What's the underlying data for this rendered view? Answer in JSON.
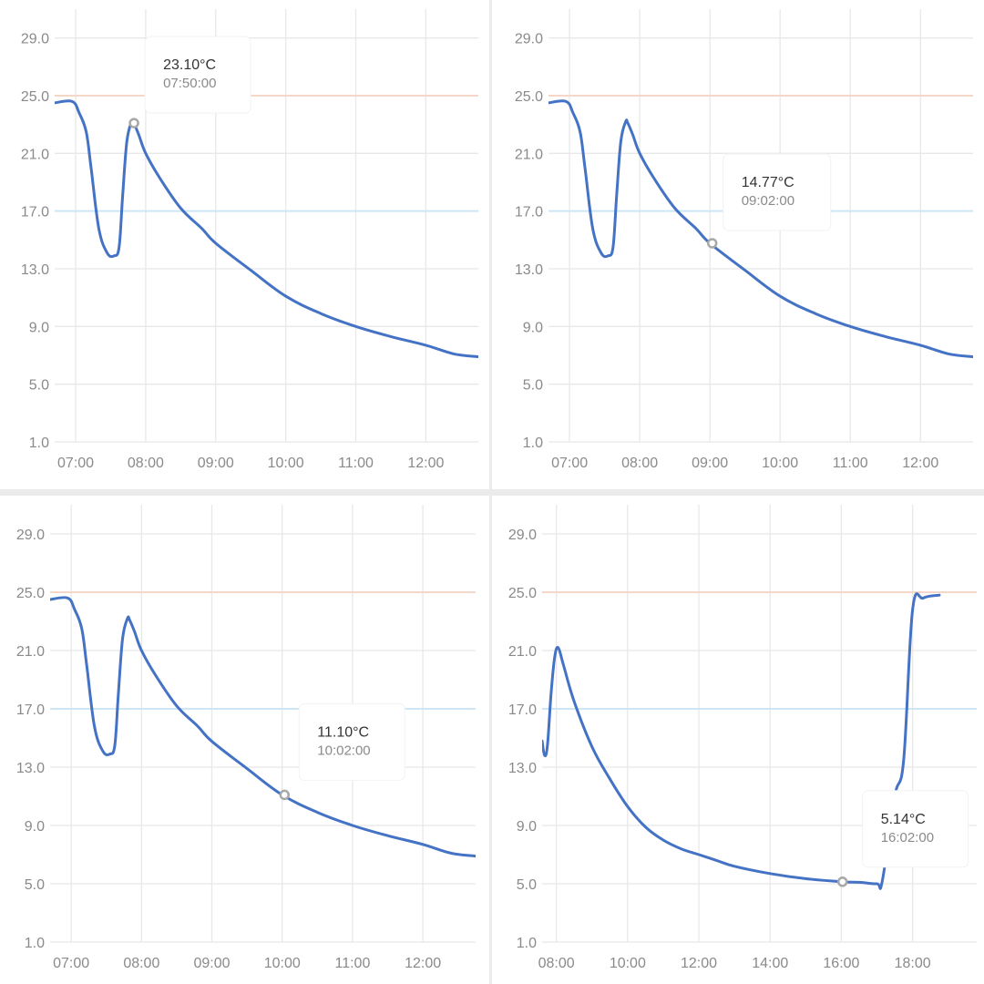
{
  "colors": {
    "line": "#4472c4",
    "upper_limit": "#f5d7c9",
    "lower_limit": "#cde6f6",
    "grid": "#e8e8e8",
    "tick_text": "#8a8a8a",
    "marker": "#a8a8a8"
  },
  "chart_data": [
    {
      "type": "line",
      "title": "",
      "ylim": [
        1,
        31
      ],
      "xlim": [
        6.7,
        12.75
      ],
      "y_ticks": [
        "29.0",
        "25.0",
        "21.0",
        "17.0",
        "13.0",
        "9.0",
        "5.0",
        "1.0"
      ],
      "y_tick_values": [
        29,
        25,
        21,
        17,
        13,
        9,
        5,
        1
      ],
      "x_ticks": [
        "07:00",
        "08:00",
        "09:00",
        "10:00",
        "11:00",
        "12:00"
      ],
      "x_tick_values": [
        7,
        8,
        9,
        10,
        11,
        12
      ],
      "reference_lines": [
        {
          "name": "upper",
          "value": 25
        },
        {
          "name": "lower",
          "value": 17
        }
      ],
      "series": [
        {
          "name": "temperature",
          "x": [
            6.7,
            6.95,
            7.05,
            7.15,
            7.22,
            7.33,
            7.45,
            7.55,
            7.62,
            7.67,
            7.73,
            7.8,
            7.83,
            7.9,
            8.0,
            8.2,
            8.5,
            8.8,
            9.0,
            9.5,
            10.0,
            10.5,
            11.0,
            11.5,
            12.0,
            12.4,
            12.75
          ],
          "y": [
            24.5,
            24.6,
            23.8,
            22.5,
            20.0,
            15.8,
            14.1,
            13.9,
            14.5,
            18.0,
            21.8,
            23.2,
            23.1,
            22.3,
            21.0,
            19.3,
            17.2,
            15.8,
            14.77,
            12.9,
            11.1,
            9.9,
            9.0,
            8.3,
            7.7,
            7.1,
            6.9
          ]
        }
      ],
      "tooltip": {
        "x": 7.833,
        "y": 23.1,
        "value": "23.10°C",
        "time": "07:50:00"
      }
    },
    {
      "type": "line",
      "title": "",
      "ylim": [
        1,
        31
      ],
      "xlim": [
        6.7,
        12.75
      ],
      "y_ticks": [
        "29.0",
        "25.0",
        "21.0",
        "17.0",
        "13.0",
        "9.0",
        "5.0",
        "1.0"
      ],
      "y_tick_values": [
        29,
        25,
        21,
        17,
        13,
        9,
        5,
        1
      ],
      "x_ticks": [
        "07:00",
        "08:00",
        "09:00",
        "10:00",
        "11:00",
        "12:00"
      ],
      "x_tick_values": [
        7,
        8,
        9,
        10,
        11,
        12
      ],
      "reference_lines": [
        {
          "name": "upper",
          "value": 25
        },
        {
          "name": "lower",
          "value": 17
        }
      ],
      "series": [
        {
          "name": "temperature",
          "x": [
            6.7,
            6.95,
            7.05,
            7.15,
            7.22,
            7.33,
            7.45,
            7.55,
            7.62,
            7.67,
            7.73,
            7.8,
            7.83,
            7.9,
            8.0,
            8.2,
            8.5,
            8.8,
            9.0,
            9.5,
            10.0,
            10.5,
            11.0,
            11.5,
            12.0,
            12.4,
            12.75
          ],
          "y": [
            24.5,
            24.6,
            23.8,
            22.5,
            20.0,
            15.8,
            14.1,
            13.9,
            14.5,
            18.0,
            21.8,
            23.2,
            23.1,
            22.3,
            21.0,
            19.3,
            17.2,
            15.8,
            14.77,
            12.9,
            11.1,
            9.9,
            9.0,
            8.3,
            7.7,
            7.1,
            6.9
          ]
        }
      ],
      "tooltip": {
        "x": 9.033,
        "y": 14.77,
        "value": "14.77°C",
        "time": "09:02:00"
      }
    },
    {
      "type": "line",
      "title": "",
      "ylim": [
        1,
        31
      ],
      "xlim": [
        6.7,
        12.75
      ],
      "y_ticks": [
        "29.0",
        "25.0",
        "21.0",
        "17.0",
        "13.0",
        "9.0",
        "5.0",
        "1.0"
      ],
      "y_tick_values": [
        29,
        25,
        21,
        17,
        13,
        9,
        5,
        1
      ],
      "x_ticks": [
        "07:00",
        "08:00",
        "09:00",
        "10:00",
        "11:00",
        "12:00"
      ],
      "x_tick_values": [
        7,
        8,
        9,
        10,
        11,
        12
      ],
      "reference_lines": [
        {
          "name": "upper",
          "value": 25
        },
        {
          "name": "lower",
          "value": 17
        }
      ],
      "series": [
        {
          "name": "temperature",
          "x": [
            6.7,
            6.95,
            7.05,
            7.15,
            7.22,
            7.33,
            7.45,
            7.55,
            7.62,
            7.67,
            7.73,
            7.8,
            7.83,
            7.9,
            8.0,
            8.2,
            8.5,
            8.8,
            9.0,
            9.5,
            10.0,
            10.5,
            11.0,
            11.5,
            12.0,
            12.4,
            12.75
          ],
          "y": [
            24.5,
            24.6,
            23.8,
            22.5,
            20.0,
            15.8,
            14.1,
            13.9,
            14.5,
            18.0,
            21.8,
            23.2,
            23.1,
            22.3,
            21.0,
            19.3,
            17.2,
            15.8,
            14.77,
            12.9,
            11.1,
            9.9,
            9.0,
            8.3,
            7.7,
            7.1,
            6.9
          ]
        }
      ],
      "tooltip": {
        "x": 10.033,
        "y": 11.1,
        "value": "11.10°C",
        "time": "10:02:00"
      }
    },
    {
      "type": "line",
      "title": "",
      "ylim": [
        1,
        31
      ],
      "xlim": [
        7.6,
        19.8
      ],
      "y_ticks": [
        "29.0",
        "25.0",
        "21.0",
        "17.0",
        "13.0",
        "9.0",
        "5.0",
        "1.0"
      ],
      "y_tick_values": [
        29,
        25,
        21,
        17,
        13,
        9,
        5,
        1
      ],
      "x_ticks": [
        "08:00",
        "10:00",
        "12:00",
        "14:00",
        "16:00",
        "18:00"
      ],
      "x_tick_values": [
        8,
        10,
        12,
        14,
        16,
        18
      ],
      "reference_lines": [
        {
          "name": "upper",
          "value": 25
        },
        {
          "name": "lower",
          "value": 17
        }
      ],
      "series": [
        {
          "name": "temperature",
          "x": [
            7.6,
            7.67,
            7.75,
            7.85,
            7.95,
            8.05,
            8.2,
            8.5,
            9.0,
            9.5,
            10.0,
            10.5,
            11.0,
            11.5,
            12.0,
            12.5,
            13.0,
            14.0,
            15.0,
            16.0,
            16.5,
            17.0,
            17.15,
            17.5,
            17.75,
            18.0,
            18.3,
            18.75
          ],
          "y": [
            14.8,
            13.8,
            14.5,
            18.0,
            20.5,
            21.2,
            20.0,
            17.5,
            14.4,
            12.2,
            10.3,
            8.9,
            8.0,
            7.4,
            7.0,
            6.6,
            6.2,
            5.7,
            5.35,
            5.14,
            5.1,
            5.0,
            5.2,
            11.0,
            13.5,
            23.8,
            24.6,
            24.8
          ]
        }
      ],
      "tooltip": {
        "x": 16.033,
        "y": 5.14,
        "value": "5.14°C",
        "time": "16:02:00"
      }
    }
  ]
}
